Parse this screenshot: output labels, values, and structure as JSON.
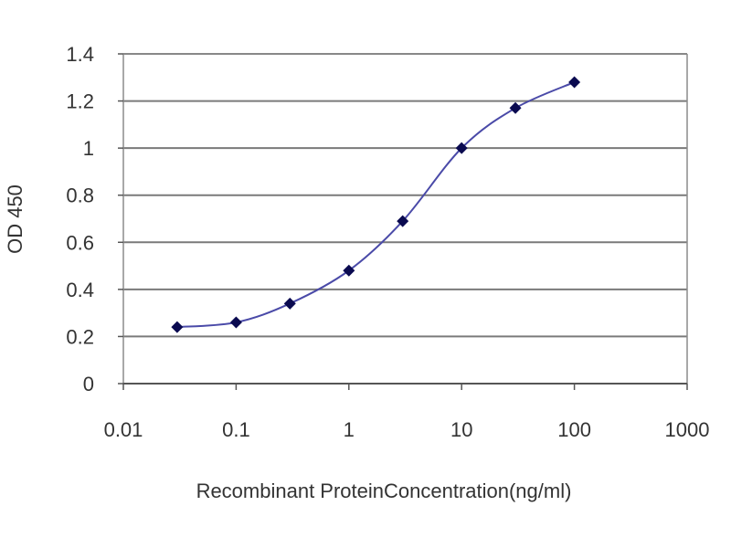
{
  "chart_data": {
    "type": "line",
    "title": "",
    "xlabel": "Recombinant ProteinConcentration(ng/ml)",
    "ylabel": "OD 450",
    "x_scale": "log",
    "xlim": [
      0.01,
      1000
    ],
    "ylim": [
      0,
      1.4
    ],
    "x_ticks": [
      "0.01",
      "0.1",
      "1",
      "10",
      "100",
      "1000"
    ],
    "y_ticks": [
      "0",
      "0.2",
      "0.4",
      "0.6",
      "0.8",
      "1",
      "1.2",
      "1.4"
    ],
    "grid": "horizontal",
    "legend": "none",
    "series": [
      {
        "x": [
          0.03,
          0.1,
          0.3,
          1,
          3,
          10,
          30,
          100
        ],
        "y": [
          0.24,
          0.26,
          0.34,
          0.48,
          0.69,
          1.0,
          1.17,
          1.28
        ]
      }
    ],
    "colors": {
      "line": "#4a4aa8",
      "marker": "#0a0a50",
      "grid": "#7a7a7a",
      "frame": "#8c8c8c"
    }
  }
}
